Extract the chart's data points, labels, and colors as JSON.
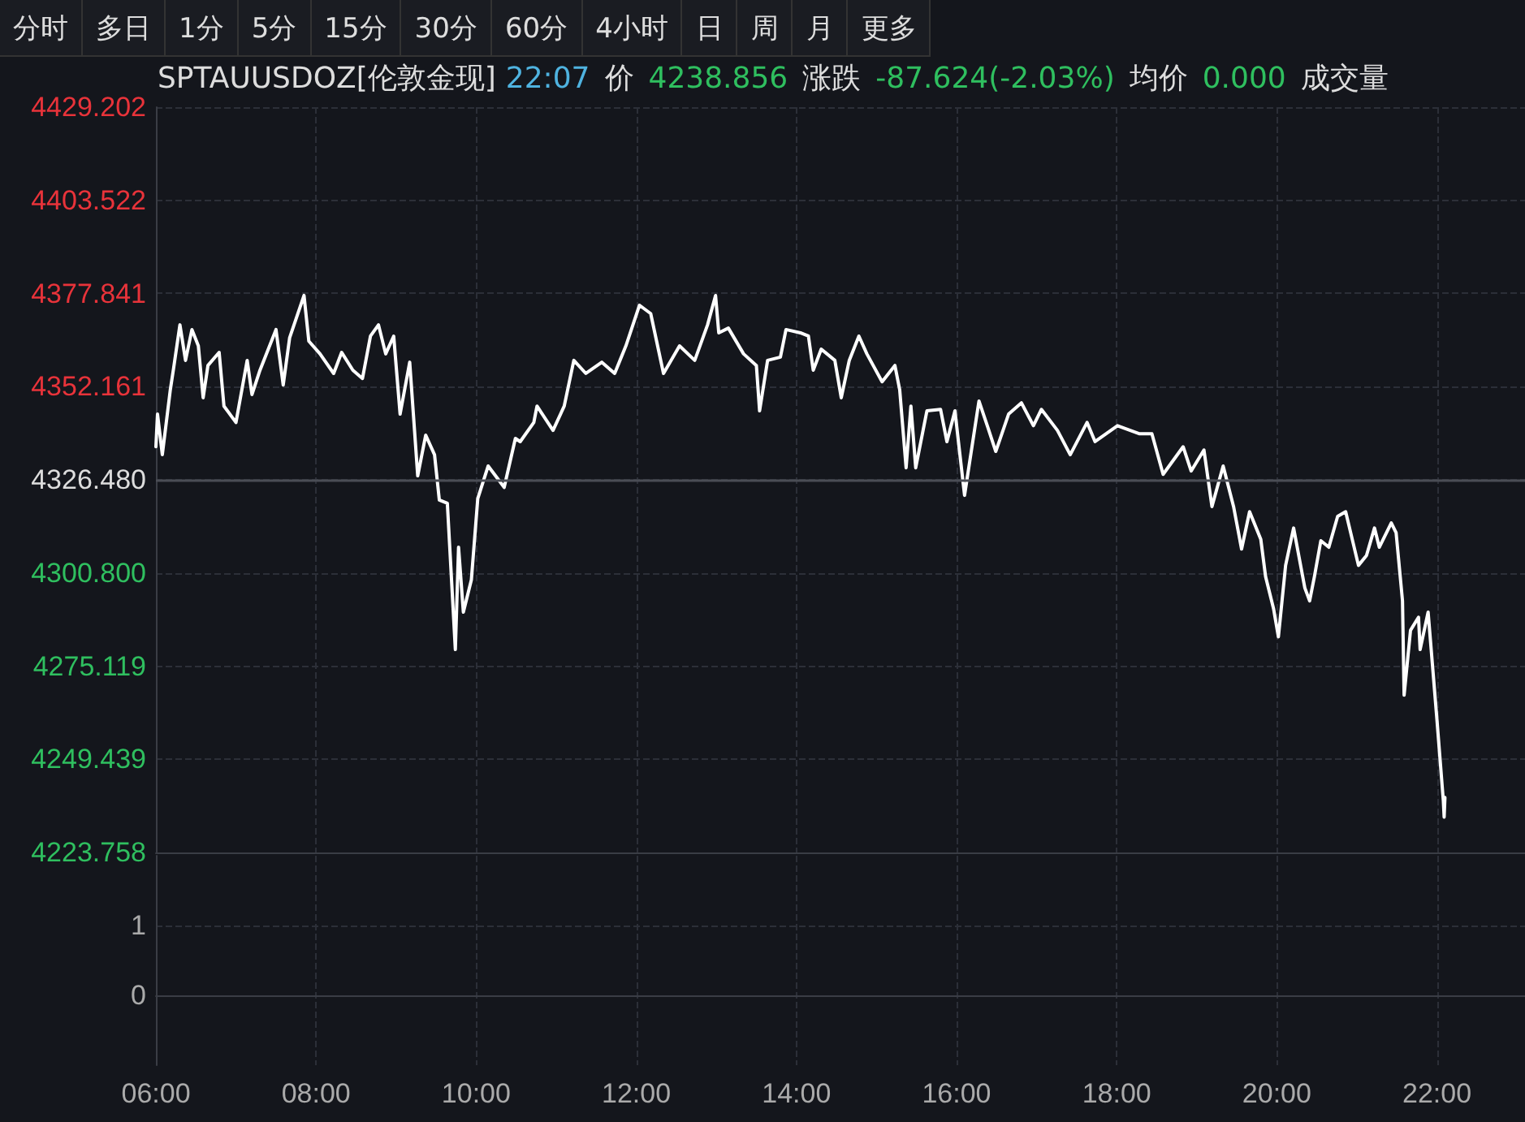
{
  "chart_data": [
    {
      "type": "line",
      "title": "SPTAUUSDOZ[伦敦金现]",
      "annotations": [
        "分时",
        "多日",
        "1分",
        "5分",
        "15分",
        "30分",
        "60分",
        "4小时",
        "日",
        "周",
        "月",
        "更多",
        "22:07",
        "价",
        "4238.856",
        "涨跌",
        "-87.624(-2.03%)",
        "均价",
        "0.000",
        "成交量"
      ],
      "x": [
        6.0,
        6.02,
        6.08,
        6.18,
        6.22,
        6.3,
        6.37,
        6.45,
        6.53,
        6.59,
        6.65,
        6.79,
        6.85,
        7.0,
        7.14,
        7.2,
        7.3,
        7.5,
        7.59,
        7.67,
        7.85,
        7.91,
        8.05,
        8.22,
        8.32,
        8.46,
        8.58,
        8.68,
        8.78,
        8.87,
        8.97,
        9.05,
        9.17,
        9.27,
        9.37,
        9.48,
        9.54,
        9.64,
        9.74,
        9.78,
        9.84,
        9.94,
        10.02,
        10.15,
        10.35,
        10.49,
        10.55,
        10.72,
        10.76,
        10.96,
        11.1,
        11.22,
        11.37,
        11.57,
        11.73,
        11.87,
        12.04,
        12.18,
        12.34,
        12.54,
        12.73,
        12.89,
        12.99,
        13.03,
        13.15,
        13.34,
        13.5,
        13.54,
        13.64,
        13.8,
        13.87,
        14.05,
        14.15,
        14.21,
        14.31,
        14.48,
        14.56,
        14.66,
        14.78,
        14.88,
        15.07,
        15.23,
        15.29,
        15.37,
        15.43,
        15.49,
        15.63,
        15.8,
        15.88,
        15.98,
        16.1,
        16.28,
        16.39,
        16.49,
        16.65,
        16.81,
        16.96,
        17.06,
        17.26,
        17.42,
        17.63,
        17.73,
        18.01,
        18.28,
        18.44,
        18.58,
        18.83,
        18.93,
        19.09,
        19.19,
        19.33,
        19.46,
        19.56,
        19.66,
        19.8,
        19.86,
        19.96,
        20.02,
        20.11,
        20.21,
        20.35,
        20.41,
        20.47,
        20.55,
        20.65,
        20.76,
        20.86,
        21.02,
        21.12,
        21.22,
        21.28,
        21.43,
        21.49,
        21.57,
        21.59,
        21.67,
        21.77,
        21.79,
        21.89,
        22.0,
        22.08,
        22.09,
        22.1
      ],
      "series": [
        {
          "color": "#ffffff",
          "values": [
            4335.6,
            4344.6,
            4333.4,
            4351.3,
            4357.1,
            4369.2,
            4359.4,
            4367.9,
            4363.4,
            4349.1,
            4358.0,
            4361.6,
            4346.8,
            4342.3,
            4359.4,
            4350.0,
            4356.7,
            4367.9,
            4352.6,
            4365.6,
            4377.3,
            4364.7,
            4361.2,
            4355.8,
            4361.6,
            4356.7,
            4354.4,
            4366.1,
            4369.2,
            4361.2,
            4366.1,
            4344.6,
            4358.9,
            4327.6,
            4338.8,
            4333.4,
            4320.9,
            4320.0,
            4279.7,
            4307.9,
            4290.0,
            4298.9,
            4321.3,
            4330.3,
            4324.4,
            4337.9,
            4337.0,
            4342.3,
            4346.8,
            4340.1,
            4346.8,
            4359.4,
            4355.8,
            4358.9,
            4355.8,
            4363.4,
            4374.6,
            4372.3,
            4355.8,
            4363.4,
            4359.4,
            4369.2,
            4377.3,
            4367.0,
            4368.3,
            4361.2,
            4358.0,
            4345.5,
            4359.4,
            4360.3,
            4367.9,
            4367.0,
            4366.1,
            4356.7,
            4362.5,
            4359.4,
            4349.1,
            4359.4,
            4366.1,
            4361.2,
            4353.5,
            4358.0,
            4351.3,
            4329.8,
            4346.8,
            4329.8,
            4345.5,
            4345.9,
            4337.0,
            4345.5,
            4322.2,
            4348.2,
            4341.0,
            4334.3,
            4344.6,
            4347.7,
            4341.4,
            4345.9,
            4340.1,
            4333.4,
            4342.3,
            4337.0,
            4341.4,
            4339.2,
            4339.2,
            4328.0,
            4335.6,
            4328.9,
            4334.7,
            4319.1,
            4330.3,
            4319.1,
            4307.4,
            4317.7,
            4310.1,
            4299.8,
            4290.9,
            4283.2,
            4302.9,
            4313.2,
            4296.7,
            4293.1,
            4299.8,
            4309.7,
            4307.9,
            4316.4,
            4317.7,
            4302.9,
            4305.6,
            4313.2,
            4307.9,
            4314.6,
            4311.9,
            4293.1,
            4267.1,
            4285.0,
            4288.6,
            4279.7,
            4290.0,
            4260.4,
            4238.0,
            4233.5,
            4238.9
          ]
        }
      ],
      "xlim": [
        6,
        23.1
      ],
      "xticks": [
        6,
        8,
        10,
        12,
        14,
        16,
        18,
        20,
        22
      ],
      "ylim": [
        4223.758,
        4429.202
      ],
      "yticks": [
        4223.758,
        4249.439,
        4275.119,
        {
          "value": 4300.8,
          "label": "4300.800"
        },
        {
          "value": 4326.48,
          "label": "4326.480"
        },
        4352.161,
        4377.841,
        4403.522,
        4429.202
      ],
      "ref_lines": [
        {
          "axis": "y",
          "value": 4326.48,
          "color": "#4a4d55"
        }
      ],
      "grid": true,
      "tick_labels": "y",
      "marker": "none",
      "line_style": "solid"
    },
    {
      "type": "bar",
      "xlim": [
        6,
        23.1
      ],
      "xticks": [
        {
          "value": 6,
          "label": "06:00"
        },
        {
          "value": 8,
          "label": "08:00"
        },
        {
          "value": 10,
          "label": "10:00"
        },
        {
          "value": 12,
          "label": "12:00"
        },
        {
          "value": 14,
          "label": "14:00"
        },
        {
          "value": 16,
          "label": "16:00"
        },
        {
          "value": 18,
          "label": "18:00"
        },
        {
          "value": 20,
          "label": "20:00"
        },
        {
          "value": 22,
          "label": "22:00"
        }
      ],
      "ylim": [
        -1,
        2
      ],
      "yticks": [
        0,
        1
      ],
      "grid": true
    }
  ]
}
